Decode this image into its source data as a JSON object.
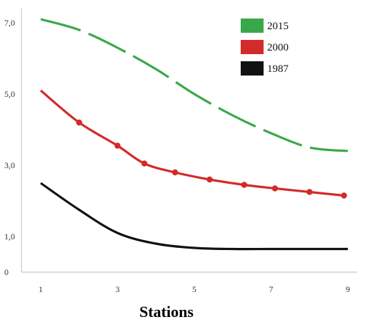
{
  "chart_data": {
    "type": "line",
    "xlabel": "Stations",
    "ylabel": "",
    "title": "",
    "xlim": [
      0.6,
      9.3
    ],
    "ylim": [
      0,
      7.4
    ],
    "x_ticks": [
      "1",
      "3",
      "5",
      "7",
      "9"
    ],
    "y_ticks": [
      "0",
      "1,0",
      "3,0",
      "5,0",
      "7,0"
    ],
    "grid": false,
    "legend_position": "top-right",
    "series": [
      {
        "name": "2015",
        "color": "#3aa84a",
        "line_style": "dashed",
        "markers": false,
        "x": [
          1,
          2,
          3,
          4,
          5,
          6,
          7,
          8,
          9
        ],
        "y": [
          7.1,
          6.8,
          6.3,
          5.7,
          5.0,
          4.4,
          3.9,
          3.5,
          3.4
        ]
      },
      {
        "name": "2000",
        "color": "#d32a2a",
        "line_style": "solid",
        "markers": true,
        "x": [
          1,
          2,
          3,
          3.7,
          4.5,
          5.4,
          6.3,
          7.1,
          8,
          8.9
        ],
        "y": [
          5.1,
          4.2,
          3.55,
          3.05,
          2.8,
          2.6,
          2.45,
          2.35,
          2.25,
          2.15
        ]
      },
      {
        "name": "1987",
        "color": "#111111",
        "line_style": "solid",
        "markers": false,
        "x": [
          1,
          2,
          3,
          4,
          5,
          6,
          7,
          8,
          9
        ],
        "y": [
          2.5,
          1.75,
          1.1,
          0.8,
          0.68,
          0.65,
          0.65,
          0.65,
          0.65
        ]
      }
    ]
  }
}
